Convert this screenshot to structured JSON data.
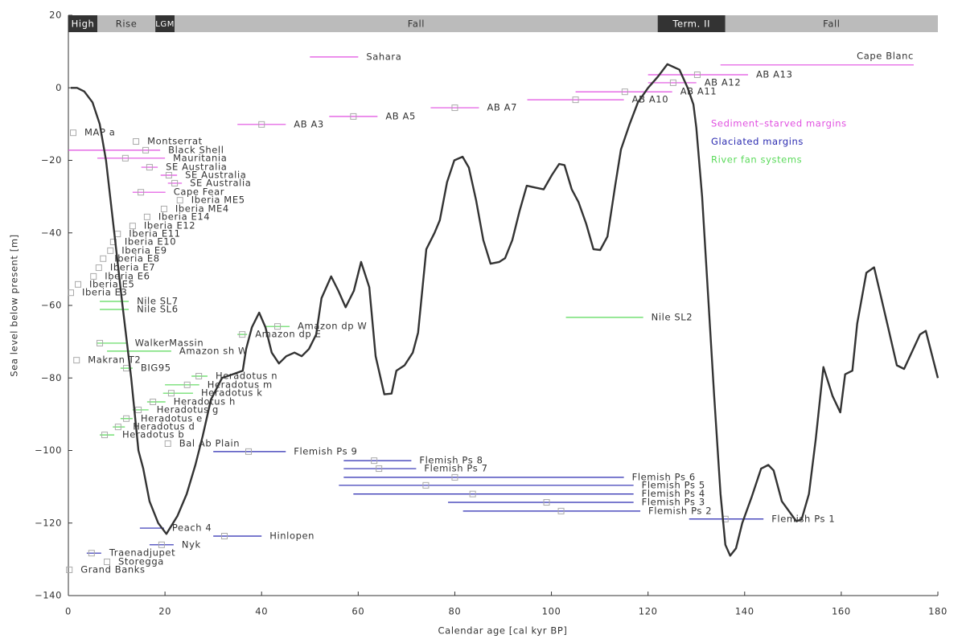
{
  "chart_data": {
    "type": "line",
    "xlabel": "Calendar age [cal kyr BP]",
    "ylabel": "Sea level below present [m]",
    "xlim": [
      0,
      180
    ],
    "ylim": [
      -140,
      20
    ],
    "xticks": [
      0,
      20,
      40,
      60,
      80,
      100,
      120,
      140,
      160,
      180
    ],
    "yticks": [
      {
        "value": -140,
        "label": "−140"
      },
      {
        "value": -120,
        "label": "−120"
      },
      {
        "value": -100,
        "label": "−100"
      },
      {
        "value": -80,
        "label": "−80"
      },
      {
        "value": -60,
        "label": "−60"
      },
      {
        "value": -40,
        "label": "−40"
      },
      {
        "value": -20,
        "label": "−20"
      },
      0,
      20
    ],
    "phases": [
      {
        "name": "High",
        "start": 0,
        "end": 6,
        "color": "#333333"
      },
      {
        "name": "Rise",
        "start": 6,
        "end": 18,
        "color": "#bbbbbb"
      },
      {
        "name": "LGM",
        "start": 18,
        "end": 22,
        "color": "#333333"
      },
      {
        "name": "Fall",
        "start": 22,
        "end": 122,
        "color": "#bbbbbb"
      },
      {
        "name": "Term. II",
        "start": 122,
        "end": 136,
        "color": "#333333"
      },
      {
        "name": "Fall",
        "start": 136,
        "end": 180,
        "color": "#bbbbbb"
      }
    ],
    "curve": {
      "color": "#333333",
      "x": [
        0.5,
        1.8,
        3.3,
        5,
        6.5,
        7.8,
        9.5,
        11.2,
        13,
        14.5,
        15.5,
        16.8,
        18.6,
        20.3,
        22.6,
        24.5,
        26.3,
        27.8,
        29.5,
        31.8,
        34,
        36.1,
        36.8,
        38,
        39.5,
        40.8,
        42.1,
        43.6,
        45.1,
        46.8,
        48.3,
        49.8,
        51.3,
        52.4,
        54.4,
        55.9,
        57.4,
        59.1,
        60.6,
        62.3,
        63.6,
        65.4,
        66.9,
        67.9,
        69.6,
        71.3,
        72.4,
        74.1,
        75.8,
        76.9,
        78.4,
        79.9,
        81.6,
        82.9,
        84.4,
        85.9,
        87.4,
        89.2,
        90.4,
        91.9,
        93.4,
        94.9,
        96.6,
        98.4,
        100.1,
        101.6,
        102.7,
        104.2,
        105.6,
        107.2,
        108.7,
        110.1,
        111.6,
        113.2,
        114.4,
        116.2,
        117.9,
        120,
        122,
        124,
        126.5,
        128.2,
        129.4,
        130,
        131.2,
        133.7,
        135,
        136,
        137,
        138.2,
        139.5,
        141.4,
        143.4,
        144.9,
        146,
        147.7,
        150.7,
        151.8,
        153.3,
        154.7,
        156.3,
        158.2,
        159.8,
        160.8,
        162.3,
        163.3,
        165.2,
        166.8,
        168.3,
        169.7,
        171.5,
        173,
        176.3,
        177.5,
        180
      ],
      "y": [
        0,
        0,
        -1,
        -4,
        -10,
        -20,
        -40,
        -60,
        -80,
        -100,
        -105,
        -114,
        -120,
        -123,
        -118,
        -112,
        -104,
        -96,
        -86,
        -80,
        -79,
        -78,
        -72,
        -66,
        -62,
        -66,
        -73,
        -76,
        -74,
        -73,
        -74,
        -72,
        -68,
        -58,
        -52,
        -56,
        -60.5,
        -56,
        -48,
        -55,
        -74,
        -84.5,
        -84.3,
        -78,
        -76.5,
        -73,
        -67.5,
        -44.5,
        -40,
        -36.5,
        -26,
        -20,
        -19,
        -22,
        -31,
        -42,
        -48.5,
        -48,
        -47,
        -42,
        -34,
        -27,
        -27.5,
        -28,
        -24,
        -21,
        -21.3,
        -28,
        -31.5,
        -37.5,
        -44.5,
        -44.7,
        -41,
        -27,
        -17,
        -10,
        -4,
        0,
        3,
        6.5,
        5,
        0,
        -4.6,
        -11,
        -30,
        -85,
        -112,
        -126,
        -129,
        -127,
        -120,
        -113,
        -105,
        -104,
        -105.5,
        -114,
        -119.5,
        -119,
        -112,
        -97,
        -77,
        -85,
        -89.5,
        -79,
        -78,
        -65,
        -51,
        -49.5,
        -58,
        -66,
        -76.5,
        -77.5,
        -68,
        -67,
        -80
      ]
    },
    "records": [
      {
        "name": "Sediment–starved margins",
        "color": "#e04fe0",
        "labels": [
          "Sahara",
          "Cape Blanc",
          "AB A13",
          "AB A12",
          "AB A11",
          "AB A10",
          "AB A7",
          "AB A5",
          "AB A3",
          "MAP a",
          "Montserrat",
          "Black Shell",
          "Mauritania",
          "SE Australia",
          "SE Australia",
          "SE Australia",
          "Cape Fear"
        ],
        "x": [
          null,
          null,
          130.2,
          125.2,
          115.2,
          105,
          80,
          59,
          40,
          1,
          14,
          16,
          11.8,
          16.8,
          20.8,
          22,
          15
        ],
        "y": [
          8.5,
          6.3,
          3.6,
          1.4,
          -1.1,
          -3.3,
          -5.5,
          -7.9,
          -10.1,
          -12.4,
          -14.8,
          -17.2,
          -19.4,
          -21.9,
          -24.1,
          -26.3,
          -28.8
        ],
        "xmin": [
          50,
          135,
          120,
          120,
          105,
          95,
          75,
          54,
          35,
          null,
          null,
          0,
          6,
          15.1,
          19.1,
          20.6,
          13.3
        ],
        "xmax": [
          60,
          175,
          140.7,
          130,
          125,
          115,
          85,
          64,
          45,
          null,
          null,
          19,
          20,
          18.5,
          22.5,
          23.5,
          20.1
        ]
      },
      {
        "name": "Glaciated margins",
        "color": "#2a2ab0",
        "labels": [
          "Flemish Ps 9",
          "Flemish Ps 8",
          "Flemish Ps 7",
          "Flemish Ps 6",
          "Flemish Ps 5",
          "Flemish Ps 4",
          "Flemish Ps 3",
          "Flemish Ps 2",
          "Flemish Ps 1",
          "Peach 4",
          "Hinlopen",
          "Nyk",
          "Traenadjupet",
          "Storegga",
          "Grand Banks"
        ],
        "x": [
          37.3,
          63.3,
          64.3,
          80,
          74,
          83.7,
          99,
          102,
          136,
          null,
          32.3,
          19.3,
          4.8,
          8,
          0.2
        ],
        "y": [
          -100.3,
          -102.8,
          -105,
          -107.4,
          -109.6,
          -112,
          -114.3,
          -116.7,
          -118.9,
          -121.4,
          -123.6,
          -126,
          -128.3,
          -130.7,
          -132.9
        ],
        "xmin": [
          30,
          57,
          57,
          57,
          56,
          59,
          78.6,
          81.7,
          128.5,
          14.8,
          30,
          16.8,
          3.8,
          null,
          null
        ],
        "xmax": [
          45,
          71,
          72,
          115,
          117,
          117,
          117,
          118.4,
          143.9,
          19.8,
          40,
          21.8,
          6.8,
          null,
          null
        ]
      },
      {
        "name": "River fan systems",
        "color": "#5ada5a",
        "labels": [
          "Iberia ME5",
          "Iberia ME4",
          "Iberia E14",
          "Iberia E12",
          "Iberia E11",
          "Iberia E10",
          "Iberia E9",
          "Iberia E8",
          "Iberia E7",
          "Iberia E6",
          "Iberia E5",
          "Iberia E3",
          "Nile SL7",
          "Nile SL6",
          "Nile SL2",
          "Amazon dp W",
          "Amazon dp E",
          "WalkerMassin",
          "Amazon sh W",
          "Makran T2",
          "BIG95",
          "Heradotus  n",
          "Heradotus  m",
          "Heradotus  k",
          "Heradotus  h",
          "Heradotus  g",
          "Heradotus  e",
          "Heradotus  d",
          "Heradotus  b",
          "Bal Ab Plain"
        ],
        "x": [
          23.1,
          19.8,
          16.3,
          13.3,
          10.2,
          9.3,
          8.7,
          7.2,
          6.3,
          5.2,
          2,
          0.5,
          null,
          null,
          null,
          43.3,
          36,
          6.5,
          null,
          1.7,
          12,
          27,
          24.6,
          21.3,
          17.5,
          14.5,
          12,
          10.3,
          7.5,
          20.6
        ],
        "y": [
          -31,
          -33.4,
          -35.6,
          -38.1,
          -40.3,
          -42.5,
          -44.9,
          -47.1,
          -49.6,
          -52,
          -54.2,
          -56.5,
          -58.9,
          -61.1,
          -63.3,
          -65.8,
          -68,
          -70.4,
          -72.6,
          -75.1,
          -77.3,
          -79.5,
          -81.9,
          -84.2,
          -86.6,
          -88.8,
          -91.2,
          -93.5,
          -95.7,
          -98.1
        ],
        "xmin": [
          null,
          null,
          null,
          null,
          null,
          null,
          null,
          null,
          null,
          null,
          null,
          null,
          6.5,
          6.5,
          103,
          40.8,
          35,
          5.8,
          8,
          null,
          10.8,
          25.5,
          20,
          19.6,
          16.3,
          13.3,
          10.8,
          9.2,
          6.5,
          null
        ],
        "xmax": [
          null,
          null,
          null,
          null,
          null,
          null,
          null,
          null,
          null,
          null,
          null,
          null,
          12.5,
          12.5,
          119,
          45.8,
          37,
          12.1,
          21.3,
          null,
          13.3,
          28.8,
          27.1,
          25.8,
          20.1,
          16.6,
          13.3,
          11.7,
          9.5,
          null
        ]
      }
    ]
  }
}
